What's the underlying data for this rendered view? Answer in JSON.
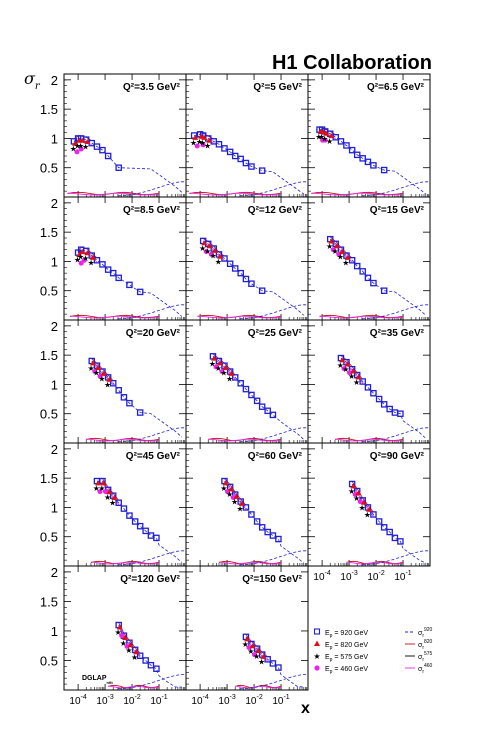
{
  "chart_data": {
    "type": "scatter",
    "title": "H1 Collaboration",
    "ylabel_main": "σ",
    "ylabel_sub": "r",
    "xlabel": "x",
    "xscale": "log",
    "xlim": [
      3e-05,
      1
    ],
    "ylim": [
      0,
      2.1
    ],
    "yticks": [
      "0.5",
      "1",
      "1.5",
      "2"
    ],
    "xticks": [
      {
        "base": "10",
        "exp": "-4"
      },
      {
        "base": "10",
        "exp": "-3"
      },
      {
        "base": "10",
        "exp": "-2"
      },
      {
        "base": "10",
        "exp": "-1"
      }
    ],
    "annotation": {
      "text": "DGLAP",
      "sub": "nfit"
    },
    "legend": {
      "placement": "bottom-right",
      "markers": [
        {
          "label_pre": "E",
          "label_sub": "p",
          "label_post": " = 920 GeV",
          "symbol": "open-square",
          "color": "#1f1fd6"
        },
        {
          "label_pre": "E",
          "label_sub": "p",
          "label_post": " = 820 GeV",
          "symbol": "triangle",
          "color": "#e01010"
        },
        {
          "label_pre": "E",
          "label_sub": "p",
          "label_post": " = 575 GeV",
          "symbol": "star",
          "color": "#000000"
        },
        {
          "label_pre": "E",
          "label_sub": "p",
          "label_post": " = 460 GeV",
          "symbol": "circle",
          "color": "#ee22ee"
        }
      ],
      "curves": [
        {
          "sym": "σ",
          "sub": "r",
          "sup": "920",
          "color": "#1f1fd6"
        },
        {
          "sym": "σ",
          "sub": "r",
          "sup": "820",
          "color": "#c01010"
        },
        {
          "sym": "σ",
          "sub": "r",
          "sup": "575",
          "color": "#000000"
        },
        {
          "sym": "σ",
          "sub": "r",
          "sup": "460",
          "color": "#ee22ee"
        }
      ]
    },
    "panels": [
      {
        "label": "Q²=3.5 GeV²",
        "x920": [
          7e-05,
          0.0001,
          0.00013,
          0.0002,
          0.00032,
          0.0005,
          0.0008,
          0.0013,
          0.0032
        ],
        "y920": [
          0.95,
          1.0,
          1.0,
          0.98,
          0.92,
          0.86,
          0.8,
          0.7,
          0.5
        ],
        "low": [
          4e-05,
          0.1
        ]
      },
      {
        "label": "Q²=5 GeV²",
        "x920": [
          6e-05,
          0.0001,
          0.00013,
          0.0002,
          0.00032,
          0.0005,
          0.0008,
          0.0013,
          0.002,
          0.0032,
          0.005,
          0.008,
          0.02
        ],
        "y920": [
          1.05,
          1.07,
          1.05,
          1.0,
          0.95,
          0.9,
          0.83,
          0.77,
          0.7,
          0.65,
          0.58,
          0.52,
          0.45
        ],
        "low": [
          4e-05,
          0.1
        ]
      },
      {
        "label": "Q²=6.5 GeV²",
        "x920": [
          8e-05,
          0.0001,
          0.00013,
          0.0002,
          0.00032,
          0.0005,
          0.0008,
          0.0013,
          0.002,
          0.0032,
          0.005,
          0.008,
          0.02
        ],
        "y920": [
          1.15,
          1.15,
          1.12,
          1.08,
          1.02,
          0.95,
          0.88,
          0.8,
          0.72,
          0.66,
          0.6,
          0.54,
          0.46
        ],
        "low": [
          4e-05,
          0.1
        ]
      },
      {
        "label": "Q²=8.5 GeV²",
        "x920": [
          0.0001,
          0.00013,
          0.0002,
          0.00032,
          0.0005,
          0.0008,
          0.0013,
          0.002,
          0.0032,
          0.008,
          0.02
        ],
        "y920": [
          1.15,
          1.2,
          1.18,
          1.1,
          1.02,
          0.95,
          0.86,
          0.8,
          0.72,
          0.6,
          0.48
        ],
        "low": [
          5e-05,
          0.1
        ]
      },
      {
        "label": "Q²=12 GeV²",
        "x920": [
          0.00013,
          0.0002,
          0.00032,
          0.0005,
          0.0008,
          0.0013,
          0.002,
          0.0032,
          0.005,
          0.008,
          0.02
        ],
        "y920": [
          1.35,
          1.3,
          1.22,
          1.12,
          1.05,
          0.96,
          0.88,
          0.8,
          0.7,
          0.62,
          0.5
        ],
        "low": [
          8e-05,
          0.1
        ]
      },
      {
        "label": "Q²=15 GeV²",
        "x920": [
          0.0002,
          0.00032,
          0.0005,
          0.0008,
          0.0013,
          0.002,
          0.0032,
          0.005,
          0.008,
          0.02
        ],
        "y920": [
          1.38,
          1.3,
          1.2,
          1.1,
          1.02,
          0.92,
          0.83,
          0.72,
          0.63,
          0.5
        ],
        "low": [
          8e-05,
          0.1
        ]
      },
      {
        "label": "Q²=20 GeV²",
        "x920": [
          0.00032,
          0.0005,
          0.0008,
          0.0013,
          0.002,
          0.0032,
          0.005,
          0.008,
          0.02
        ],
        "y920": [
          1.4,
          1.32,
          1.22,
          1.12,
          1.02,
          0.9,
          0.78,
          0.68,
          0.52
        ],
        "low": [
          0.0002,
          0.1
        ]
      },
      {
        "label": "Q²=25 GeV²",
        "x920": [
          0.0003,
          0.0005,
          0.0008,
          0.0013,
          0.002,
          0.0032,
          0.005,
          0.008,
          0.013,
          0.02,
          0.032,
          0.05
        ],
        "y920": [
          1.48,
          1.4,
          1.32,
          1.22,
          1.12,
          1.02,
          0.92,
          0.82,
          0.72,
          0.62,
          0.55,
          0.48
        ],
        "low": [
          0.0002,
          0.1
        ]
      },
      {
        "label": "Q²=35 GeV²",
        "x920": [
          0.0005,
          0.0008,
          0.0013,
          0.002,
          0.0032,
          0.005,
          0.008,
          0.013,
          0.02,
          0.032,
          0.05,
          0.08
        ],
        "y920": [
          1.45,
          1.38,
          1.26,
          1.16,
          1.05,
          0.95,
          0.85,
          0.75,
          0.66,
          0.58,
          0.52,
          0.5
        ],
        "low": [
          0.0003,
          0.1
        ]
      },
      {
        "label": "Q²=45 GeV²",
        "x920": [
          0.0005,
          0.0008,
          0.0013,
          0.002,
          0.0032,
          0.005,
          0.008,
          0.013,
          0.02,
          0.032,
          0.05,
          0.08
        ],
        "y920": [
          1.45,
          1.45,
          1.3,
          1.2,
          1.08,
          0.98,
          0.86,
          0.76,
          0.68,
          0.6,
          0.52,
          0.48
        ],
        "low": [
          0.0003,
          0.1
        ]
      },
      {
        "label": "Q²=60 GeV²",
        "x920": [
          0.0008,
          0.0013,
          0.002,
          0.0032,
          0.005,
          0.008,
          0.013,
          0.02,
          0.032,
          0.05,
          0.08
        ],
        "y920": [
          1.45,
          1.35,
          1.22,
          1.1,
          1.0,
          0.88,
          0.76,
          0.66,
          0.58,
          0.52,
          0.46
        ],
        "low": [
          0.0005,
          0.1
        ]
      },
      {
        "label": "Q²=90 GeV²",
        "x920": [
          0.0013,
          0.002,
          0.0032,
          0.005,
          0.008,
          0.013,
          0.02,
          0.032,
          0.05,
          0.08
        ],
        "y920": [
          1.4,
          1.28,
          1.12,
          1.0,
          0.88,
          0.76,
          0.66,
          0.58,
          0.48,
          0.42
        ],
        "low": [
          0.0008,
          0.1
        ]
      },
      {
        "label": "Q²=120 GeV²",
        "x920": [
          0.0032,
          0.005,
          0.008,
          0.013,
          0.02,
          0.032,
          0.05,
          0.08
        ],
        "y920": [
          1.1,
          0.92,
          0.8,
          0.68,
          0.58,
          0.5,
          0.42,
          0.36
        ],
        "low": [
          0.0013,
          0.1
        ]
      },
      {
        "label": "Q²=150 GeV²",
        "x920": [
          0.005,
          0.008,
          0.013,
          0.02,
          0.032,
          0.05,
          0.08
        ],
        "y920": [
          0.9,
          0.78,
          0.7,
          0.6,
          0.52,
          0.45,
          0.38
        ],
        "low": [
          0.002,
          0.1
        ]
      }
    ]
  }
}
